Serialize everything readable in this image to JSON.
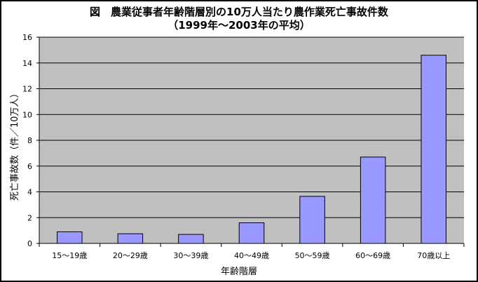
{
  "title_line1": "図　農業従事者年齢階層別の10万人当たり農作業死亡事故件数",
  "title_line2": "（1999年〜2003年の平均）",
  "chart_data": {
    "type": "bar",
    "title": "図　農業従事者年齢階層別の10万人当たり農作業死亡事故件数",
    "subtitle": "（1999年〜2003年の平均）",
    "xlabel": "年齢階層",
    "ylabel": "死亡事故数（件／10万人）",
    "categories": [
      "15〜19歳",
      "20〜29歳",
      "30〜39歳",
      "40〜49歳",
      "50〜59歳",
      "60〜69歳",
      "70歳以上"
    ],
    "values": [
      0.9,
      0.75,
      0.7,
      1.6,
      3.65,
      6.7,
      14.6
    ],
    "ylim": [
      0,
      16
    ],
    "yticks": [
      0,
      2,
      4,
      6,
      8,
      10,
      12,
      14,
      16
    ],
    "grid": true,
    "legend": "none",
    "colors": {
      "bar": "#9999ff",
      "plot_bg": "#c0c0c0",
      "grid": "#000000"
    }
  }
}
